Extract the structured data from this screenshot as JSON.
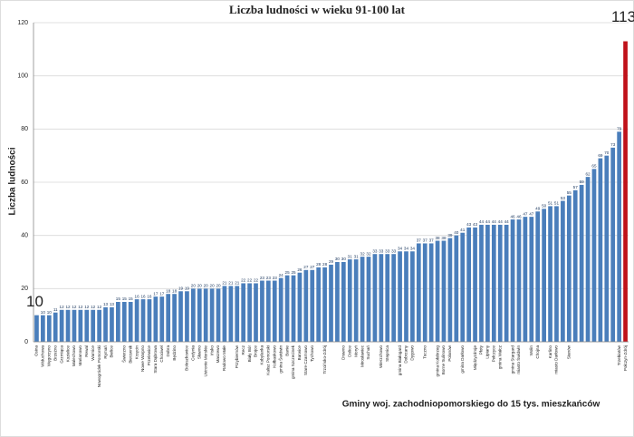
{
  "chart_data": {
    "type": "bar",
    "title": "Liczba ludności w wieku 91-100 lat",
    "y_label": "Liczba ludności",
    "x_label": "Gminy woj. zachodniopomorskiego do 15 tys. mieszkańców",
    "categories": [
      "Osina",
      "Widuchowa",
      "Węgorzyno",
      "Brzeźno",
      "Grzmiąca",
      "Kozielice",
      "Malechowo",
      "Marianowo",
      "Rewal",
      "Warnice",
      "Nowogródek Pomorski",
      "Rymań",
      "Bielice",
      null,
      "Świerzno",
      "Bierzwnik",
      "Krzęcin",
      "Nowe Warpno",
      "Przelewice",
      "Stara Dąbrowa",
      "Chociwel",
      "Dobra",
      "Będzino",
      null,
      "Boleszkowice",
      "Cedynia",
      "Sławno",
      "Ustronie Morskie",
      "Ińsko",
      "Maszewo",
      "Radowo Małe",
      null,
      "Przybiernów",
      "Recz",
      "Biały Bór",
      "Brojce",
      "Kobylanka",
      "Kalisz Pomorski",
      "Kołbaskowo",
      "gmina Świdwin",
      "Banie",
      "gmina Szczecinek",
      "Barwice",
      "Stare Czarnowo",
      "Tychowo",
      null,
      "Trzcińsko-Zdrój",
      null,
      null,
      "Drawno",
      "Dolice",
      "Moryń",
      "Mirosławiec",
      "Suchań",
      null,
      "Wierzchowo",
      "Stepnica",
      null,
      "gmina Białogard",
      "Dobrzany",
      "Dygowo",
      null,
      "Tuczno",
      null,
      "gmina Kołobrzeg",
      "Borne Sulinowo",
      "Polanów",
      null,
      "gmina Darłowo",
      null,
      "Międzyzdroje",
      "Płoty",
      "Lipiany",
      "Pełczyce",
      "gmina Wałcz",
      null,
      "gmina Stargard",
      "miasto Świdwin",
      null,
      "Wolin",
      "Chojna",
      null,
      "Karlino",
      "miasto Darłowo",
      null,
      "Sianów",
      null,
      null,
      null,
      null,
      null,
      null,
      null,
      "Trzebiatów",
      "Połczyn-Zdrój"
    ],
    "values": [
      10,
      10,
      10,
      11,
      12,
      12,
      12,
      12,
      12,
      12,
      12,
      13,
      13,
      15,
      15,
      15,
      16,
      16,
      16,
      17,
      17,
      18,
      18,
      19,
      19,
      20,
      20,
      20,
      20,
      20,
      21,
      21,
      21,
      22,
      22,
      22,
      23,
      23,
      23,
      24,
      25,
      25,
      26,
      27,
      27,
      28,
      28,
      29,
      30,
      30,
      31,
      31,
      32,
      32,
      33,
      33,
      33,
      33,
      34,
      34,
      34,
      37,
      37,
      37,
      38,
      38,
      39,
      40,
      41,
      43,
      43,
      44,
      44,
      44,
      44,
      44,
      46,
      46,
      47,
      47,
      49,
      50,
      51,
      51,
      53,
      55,
      57,
      59,
      62,
      65,
      69,
      70,
      73,
      79,
      113
    ],
    "color": "#4a7ebb",
    "highlight_color": "#c0121a",
    "ylim": [
      0,
      120
    ],
    "yticks": [
      0,
      20,
      40,
      60,
      80,
      100,
      120
    ],
    "grid": true
  }
}
